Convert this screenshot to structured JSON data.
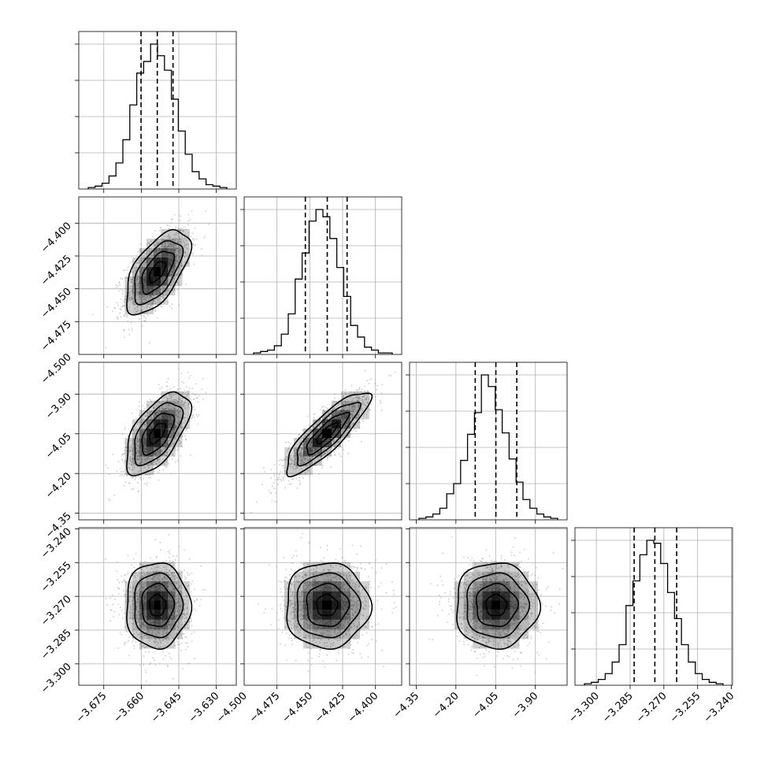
{
  "chart_data": {
    "type": "corner",
    "title": "",
    "grid": true,
    "parameters": [
      {
        "range": [
          -3.685,
          -3.622
        ],
        "ticks": [
          -3.675,
          -3.66,
          -3.645,
          -3.63
        ],
        "tick_labels": [
          "−3.675",
          "−3.660",
          "−3.645",
          "−3.630"
        ],
        "quantiles": [
          -3.6601,
          -3.6536,
          -3.6473
        ],
        "mean": -3.6536,
        "sd": 0.0064
      },
      {
        "range": [
          -4.5,
          -4.38
        ],
        "ticks": [
          -4.5,
          -4.475,
          -4.45,
          -4.425,
          -4.4
        ],
        "tick_labels": [
          "−4.500",
          "−4.475",
          "−4.450",
          "−4.425",
          "−4.400"
        ],
        "quantiles": [
          -4.4534,
          -4.4367,
          -4.4216
        ],
        "mean": -4.437,
        "sd": 0.016
      },
      {
        "range": [
          -4.375,
          -3.78
        ],
        "ticks": [
          -4.35,
          -4.2,
          -4.05,
          -3.9
        ],
        "tick_labels": [
          "−4.35",
          "−4.20",
          "−4.05",
          "−3.90"
        ],
        "quantiles": [
          -4.127,
          -4.049,
          -3.97
        ],
        "mean": -4.048,
        "sd": 0.078
      },
      {
        "range": [
          -3.3095,
          -3.2395
        ],
        "ticks": [
          -3.3,
          -3.285,
          -3.27,
          -3.255,
          -3.24
        ],
        "tick_labels": [
          "−3.300",
          "−3.285",
          "−3.270",
          "−3.255",
          "−3.240"
        ],
        "quantiles": [
          -3.2832,
          -3.274,
          -3.2643
        ],
        "mean": -3.274,
        "sd": 0.0095
      }
    ],
    "histograms": [
      [
        1,
        2,
        4,
        9,
        18,
        34,
        58,
        80,
        88,
        100,
        92,
        82,
        62,
        40,
        24,
        12,
        7,
        3,
        2,
        1
      ],
      [
        1,
        2,
        3,
        6,
        14,
        28,
        52,
        70,
        92,
        100,
        95,
        80,
        60,
        40,
        20,
        12,
        5,
        3,
        1,
        1
      ],
      [
        1,
        2,
        4,
        8,
        18,
        25,
        41,
        59,
        74,
        100,
        92,
        76,
        60,
        42,
        26,
        14,
        8,
        4,
        2,
        1
      ],
      [
        1,
        2,
        4,
        8,
        16,
        28,
        55,
        72,
        90,
        100,
        98,
        84,
        64,
        46,
        28,
        16,
        8,
        4,
        2,
        1
      ]
    ],
    "correlations": {
      "1-0": 0.6,
      "2-0": 0.6,
      "2-1": 0.85,
      "3-0": 0.0,
      "3-1": 0.0,
      "3-2": 0.0
    },
    "contour_levels_sigma": [
      0.5,
      1.0,
      1.5,
      2.0
    ],
    "colors": {
      "line": "#000000",
      "density": "#000000",
      "grid": "#b0b0b0",
      "points": "#a0a0a0"
    }
  }
}
